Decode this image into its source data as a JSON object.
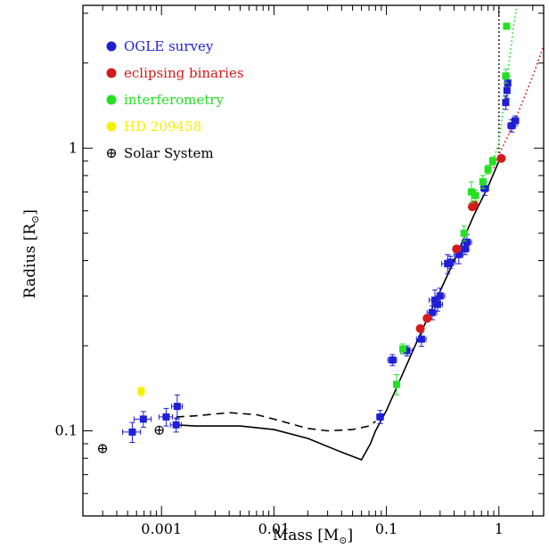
{
  "chart_data": {
    "type": "scatter",
    "title": "",
    "xlabel_main": "Mass [M",
    "xlabel_sub": "⊙",
    "xlabel_close": "]",
    "ylabel_main": "Radius [R",
    "ylabel_sub": "⊙",
    "ylabel_close": "]",
    "xscale": "log",
    "yscale": "log",
    "xlim": [
      0.0002,
      2.5
    ],
    "ylim": [
      0.05,
      3.2
    ],
    "xticks": [
      {
        "value": 0.001,
        "label": "0.001"
      },
      {
        "value": 0.01,
        "label": "0.01"
      },
      {
        "value": 0.1,
        "label": "0.1"
      },
      {
        "value": 1,
        "label": "1"
      }
    ],
    "yticks": [
      {
        "value": 0.1,
        "label": "0.1"
      },
      {
        "value": 1,
        "label": "1"
      }
    ],
    "grid": false,
    "legend_position": "top-left",
    "series": [
      {
        "name": "OGLE survey",
        "color": "#1f1fd6",
        "marker": "square",
        "points": [
          {
            "x": 0.00055,
            "y": 0.099,
            "xerr": [
              0.0001,
              0.0001
            ],
            "yerr": [
              0.008,
              0.008
            ]
          },
          {
            "x": 0.00069,
            "y": 0.11,
            "xerr": [
              0.00012,
              0.00012
            ],
            "yerr": [
              0.007,
              0.007
            ]
          },
          {
            "x": 0.0011,
            "y": 0.112,
            "xerr": [
              0.00015,
              0.00015
            ],
            "yerr": [
              0.008,
              0.008
            ]
          },
          {
            "x": 0.00135,
            "y": 0.105,
            "xerr": [
              0.00015,
              0.00015
            ],
            "yerr": [
              0.006,
              0.006
            ]
          },
          {
            "x": 0.00138,
            "y": 0.122,
            "xerr": [
              0.00015,
              0.00015
            ],
            "yerr": [
              0.012,
              0.012
            ]
          },
          {
            "x": 0.088,
            "y": 0.112,
            "xerr": [
              0.006,
              0.006
            ],
            "yerr": [
              0.006,
              0.006
            ]
          },
          {
            "x": 0.113,
            "y": 0.178,
            "xerr": [
              0.01,
              0.01
            ],
            "yerr": [
              0.008,
              0.008
            ]
          },
          {
            "x": 0.152,
            "y": 0.192,
            "xerr": [
              0.018,
              0.018
            ],
            "yerr": [
              0.008,
              0.008
            ]
          },
          {
            "x": 0.205,
            "y": 0.211,
            "xerr": [
              0.02,
              0.02
            ],
            "yerr": [
              0.012,
              0.012
            ]
          },
          {
            "x": 0.255,
            "y": 0.262,
            "xerr": [
              0.025,
              0.025
            ],
            "yerr": [
              0.015,
              0.015
            ]
          },
          {
            "x": 0.27,
            "y": 0.29,
            "xerr": [
              0.03,
              0.03
            ],
            "yerr": [
              0.025,
              0.025
            ]
          },
          {
            "x": 0.285,
            "y": 0.28,
            "xerr": [
              0.03,
              0.03
            ],
            "yerr": [
              0.015,
              0.015
            ]
          },
          {
            "x": 0.3,
            "y": 0.3,
            "xerr": [
              0.03,
              0.03
            ],
            "yerr": [
              0.02,
              0.02
            ]
          },
          {
            "x": 0.35,
            "y": 0.39,
            "xerr": [
              0.04,
              0.04
            ],
            "yerr": [
              0.03,
              0.03
            ]
          },
          {
            "x": 0.37,
            "y": 0.395,
            "xerr": [
              0.04,
              0.04
            ],
            "yerr": [
              0.02,
              0.02
            ]
          },
          {
            "x": 0.44,
            "y": 0.42,
            "xerr": [
              0.04,
              0.04
            ],
            "yerr": [
              0.03,
              0.03
            ]
          },
          {
            "x": 0.5,
            "y": 0.44,
            "xerr": [
              0.04,
              0.04
            ],
            "yerr": [
              0.02,
              0.02
            ]
          },
          {
            "x": 0.52,
            "y": 0.465,
            "xerr": [
              0.05,
              0.05
            ],
            "yerr": [
              0.03,
              0.03
            ]
          },
          {
            "x": 0.75,
            "y": 0.72,
            "xerr": [
              0.06,
              0.06
            ],
            "yerr": [
              0.04,
              0.04
            ]
          },
          {
            "x": 1.15,
            "y": 1.45,
            "xerr": [
              0.06,
              0.06
            ],
            "yerr": [
              0.08,
              0.08
            ]
          },
          {
            "x": 1.18,
            "y": 1.6,
            "xerr": [
              0.06,
              0.06
            ],
            "yerr": [
              0.1,
              0.1
            ]
          },
          {
            "x": 1.2,
            "y": 1.7,
            "xerr": [
              0.06,
              0.06
            ],
            "yerr": [
              0.1,
              0.1
            ]
          },
          {
            "x": 1.3,
            "y": 1.2,
            "xerr": [
              0.1,
              0.1
            ],
            "yerr": [
              0.06,
              0.06
            ]
          },
          {
            "x": 1.4,
            "y": 1.25,
            "xerr": [
              0.1,
              0.1
            ],
            "yerr": [
              0.05,
              0.05
            ]
          }
        ]
      },
      {
        "name": "eclipsing binaries",
        "color": "#d41a1a",
        "marker": "circle",
        "points": [
          {
            "x": 0.2,
            "y": 0.23
          },
          {
            "x": 0.23,
            "y": 0.25
          },
          {
            "x": 0.42,
            "y": 0.44
          },
          {
            "x": 0.58,
            "y": 0.62
          },
          {
            "x": 0.6,
            "y": 0.63
          },
          {
            "x": 1.05,
            "y": 0.92
          }
        ]
      },
      {
        "name": "interferometry",
        "color": "#22e022",
        "marker": "square",
        "points": [
          {
            "x": 0.123,
            "y": 0.146,
            "yerr": [
              0.012,
              0.012
            ]
          },
          {
            "x": 0.14,
            "y": 0.195,
            "yerr": [
              0.008,
              0.008
            ]
          },
          {
            "x": 0.49,
            "y": 0.5,
            "yerr": [
              0.03,
              0.03
            ]
          },
          {
            "x": 0.57,
            "y": 0.7,
            "yerr": [
              0.06,
              0.06
            ]
          },
          {
            "x": 0.62,
            "y": 0.68,
            "yerr": [
              0.03,
              0.03
            ]
          },
          {
            "x": 0.72,
            "y": 0.76,
            "yerr": [
              0.04,
              0.04
            ]
          },
          {
            "x": 0.8,
            "y": 0.84,
            "yerr": [
              0.03,
              0.03
            ]
          },
          {
            "x": 0.88,
            "y": 0.9,
            "yerr": [
              0.03,
              0.03
            ]
          },
          {
            "x": 1.15,
            "y": 1.8,
            "yerr": [
              0.1,
              0.1
            ]
          },
          {
            "x": 1.17,
            "y": 2.7,
            "yerr": [
              0.06,
              0.06
            ]
          }
        ]
      },
      {
        "name": "HD 209458",
        "color": "#f5f000",
        "marker": "square",
        "points": [
          {
            "x": 0.00066,
            "y": 0.138,
            "yerr": [
              0.005,
              0.005
            ]
          }
        ]
      },
      {
        "name": "Solar System",
        "color": "#000000",
        "marker": "circled-plus",
        "points": [
          {
            "x": 0.000299,
            "y": 0.0865
          },
          {
            "x": 0.000954,
            "y": 0.1005
          }
        ]
      }
    ],
    "curves": [
      {
        "style": "solid",
        "color": "#000000",
        "x": [
          0.00135,
          0.002,
          0.005,
          0.01,
          0.02,
          0.04,
          0.06,
          0.072,
          0.08,
          0.1,
          0.2,
          0.4,
          0.6,
          0.8,
          1.0
        ],
        "y": [
          0.105,
          0.104,
          0.104,
          0.101,
          0.094,
          0.084,
          0.079,
          0.09,
          0.1,
          0.118,
          0.22,
          0.4,
          0.58,
          0.73,
          0.9
        ]
      },
      {
        "style": "dashed",
        "color": "#000000",
        "x": [
          0.00135,
          0.002,
          0.004,
          0.007,
          0.01,
          0.02,
          0.03,
          0.05,
          0.07,
          0.08
        ],
        "y": [
          0.112,
          0.113,
          0.116,
          0.114,
          0.11,
          0.102,
          0.1,
          0.101,
          0.104,
          0.108
        ]
      },
      {
        "style": "dotted",
        "color": "#000000",
        "x": [
          1.0,
          1.0,
          1.0,
          1.0
        ],
        "y": [
          0.9,
          1.3,
          2.0,
          3.2
        ]
      },
      {
        "style": "dotted",
        "color": "#22e022",
        "x": [
          0.85,
          1.0,
          1.12,
          1.25,
          1.35,
          1.45
        ],
        "y": [
          0.85,
          1.05,
          1.5,
          2.1,
          2.7,
          3.2
        ]
      },
      {
        "style": "dotted",
        "color": "#d41a1a",
        "x": [
          0.9,
          1.0,
          1.2,
          1.5,
          2.0,
          2.5
        ],
        "y": [
          0.85,
          0.95,
          1.1,
          1.35,
          1.8,
          2.3
        ]
      }
    ]
  }
}
